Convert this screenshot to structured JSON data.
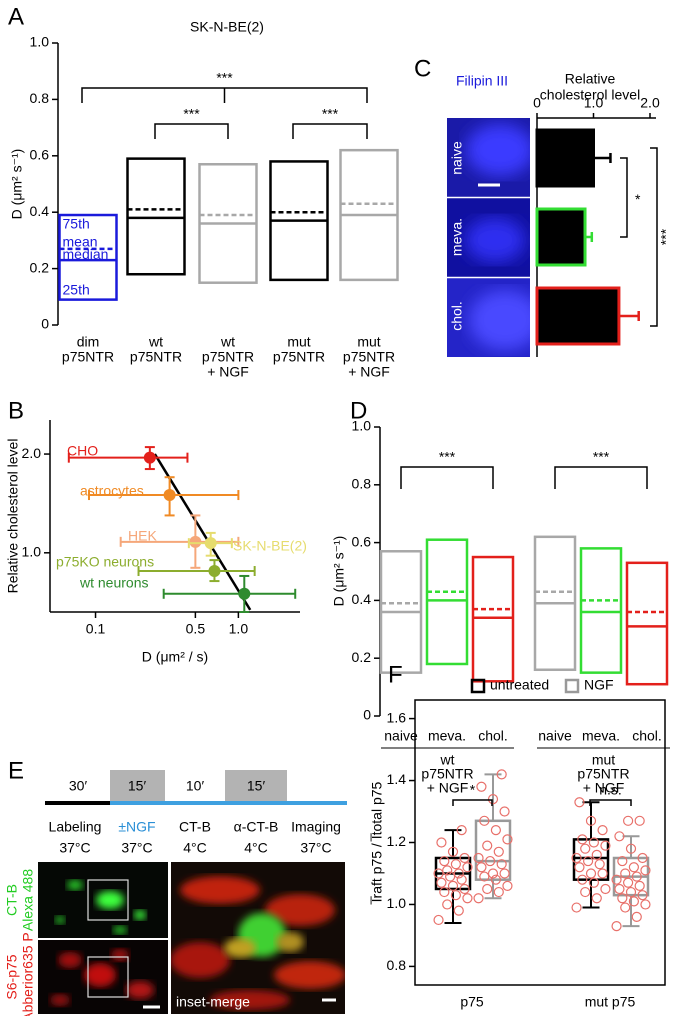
{
  "chart_data": [
    {
      "panel": "A",
      "type": "box",
      "title": "SK-N-BE(2)",
      "ylabel": "D (μm² s⁻¹)",
      "ylim": [
        0,
        1
      ],
      "yticks": [
        0,
        0.2,
        0.4,
        0.6,
        0.8,
        {
          "value": 1,
          "label": "1.0"
        }
      ],
      "categories": [
        [
          "dim",
          "p75NTR"
        ],
        [
          "wt",
          "p75NTR"
        ],
        [
          "wt",
          "p75NTR",
          "+ NGF"
        ],
        [
          "mut",
          "p75NTR"
        ],
        [
          "mut",
          "p75NTR",
          "+ NGF"
        ]
      ],
      "boxes": [
        {
          "color": "#1a1adb",
          "q1": 0.09,
          "q3": 0.39,
          "median": 0.23,
          "mean": 0.27
        },
        {
          "color": "#000000",
          "q1": 0.18,
          "q3": 0.59,
          "median": 0.38,
          "mean": 0.41
        },
        {
          "color": "#a8a8a8",
          "q1": 0.15,
          "q3": 0.57,
          "median": 0.36,
          "mean": 0.39
        },
        {
          "color": "#000000",
          "q1": 0.16,
          "q3": 0.58,
          "median": 0.37,
          "mean": 0.4
        },
        {
          "color": "#a8a8a8",
          "q1": 0.16,
          "q3": 0.62,
          "median": 0.39,
          "mean": 0.43
        }
      ],
      "box_labels": [
        "75th",
        "mean",
        "median",
        "25th"
      ],
      "annotations": [
        "***",
        "***",
        "***"
      ]
    },
    {
      "panel": "B",
      "type": "scatter",
      "xlabel": "D (μm² / s)",
      "ylabel": "Relative cholesterol level",
      "xlog": true,
      "ylog": true,
      "xlim": [
        0.048,
        2.7
      ],
      "ylim": [
        0.66,
        2.54
      ],
      "xticks": [
        0.1,
        0.5,
        {
          "value": 1,
          "label": "1.0"
        }
      ],
      "yticks": [
        {
          "value": 1,
          "label": "1.0"
        },
        {
          "value": 2,
          "label": "2.0"
        }
      ],
      "series": [
        {
          "name": "CHO",
          "color": "#e3201b",
          "x": 0.24,
          "y": 1.95,
          "x_low": 0.065,
          "x_high": 0.44,
          "y_low": 1.8,
          "y_high": 2.1
        },
        {
          "name": "astrocytes",
          "color": "#f08a24",
          "x": 0.33,
          "y": 1.5,
          "x_low": 0.09,
          "x_high": 1.0,
          "y_low": 1.3,
          "y_high": 1.7
        },
        {
          "name": "HEK",
          "color": "#f5a77a",
          "x": 0.5,
          "y": 1.08,
          "x_low": 0.15,
          "x_high": 1.0,
          "y_low": 0.9,
          "y_high": 1.3
        },
        {
          "name": "SK-N-BE(2)",
          "color": "#e6dc6e",
          "x": 0.64,
          "y": 1.07,
          "x_low": 0.45,
          "x_high": 0.9,
          "y_low": 0.98,
          "y_high": 1.15
        },
        {
          "name": "p75KO neurons",
          "color": "#8cad2e",
          "x": 0.68,
          "y": 0.88,
          "x_low": 0.2,
          "x_high": 1.3,
          "y_low": 0.82,
          "y_high": 0.95
        },
        {
          "name": "wt neurons",
          "color": "#2e8b2e",
          "x": 1.1,
          "y": 0.75,
          "x_low": 0.3,
          "x_high": 2.5,
          "y_low": 0.66,
          "y_high": 0.85
        }
      ],
      "fit": {
        "color": "#000000",
        "x": [
          0.26,
          1.21
        ],
        "y": [
          2.0,
          0.67
        ]
      }
    },
    {
      "panel": "C",
      "type": "hbar",
      "image_title": "Filipin III",
      "xlabel": [
        "Relative",
        "cholesterol level"
      ],
      "xlim": [
        0,
        2
      ],
      "xticks": [
        0,
        {
          "value": 1,
          "label": "1.0"
        },
        {
          "value": 2,
          "label": "2.0"
        }
      ],
      "categories": [
        "naive",
        "meva.",
        "chol."
      ],
      "values": [
        1.0,
        0.85,
        1.45
      ],
      "errors": [
        0.3,
        0.12,
        0.35
      ],
      "bar_color": "#000000",
      "colors": [
        "#000000",
        "#33dd33",
        "#e3201b"
      ],
      "annotations": [
        "*",
        "***"
      ]
    },
    {
      "panel": "D",
      "type": "box",
      "ylabel": "D (μm² s⁻¹)",
      "ylim": [
        0,
        1
      ],
      "yticks": [
        0,
        0.2,
        0.4,
        0.6,
        0.8,
        {
          "value": 1,
          "label": "1.0"
        }
      ],
      "categories": [
        "naive",
        "meva.",
        "chol.",
        "naive",
        "meva.",
        "chol."
      ],
      "groups": [
        [
          "wt",
          "p75NTR",
          "+ NGF"
        ],
        [
          "mut",
          "p75NTR",
          "+ NGF"
        ]
      ],
      "boxes": [
        {
          "color": "#a8a8a8",
          "q1": 0.15,
          "q3": 0.57,
          "median": 0.36,
          "mean": 0.39
        },
        {
          "color": "#33dd33",
          "q1": 0.18,
          "q3": 0.61,
          "median": 0.4,
          "mean": 0.43
        },
        {
          "color": "#e3201b",
          "q1": 0.12,
          "q3": 0.55,
          "median": 0.34,
          "mean": 0.37
        },
        {
          "color": "#a8a8a8",
          "q1": 0.16,
          "q3": 0.62,
          "median": 0.39,
          "mean": 0.43
        },
        {
          "color": "#33dd33",
          "q1": 0.15,
          "q3": 0.58,
          "median": 0.36,
          "mean": 0.4
        },
        {
          "color": "#e3201b",
          "q1": 0.11,
          "q3": 0.53,
          "median": 0.31,
          "mean": 0.36
        }
      ],
      "annotations": [
        "***",
        "***"
      ]
    },
    {
      "panel": "F",
      "type": "box",
      "ylabel": "I̅raft p75 / I̅total p75",
      "ylim": [
        0.74,
        1.66
      ],
      "yticks": [
        0.8,
        {
          "value": 1,
          "label": "1.0"
        },
        1.2,
        1.4,
        1.6
      ],
      "categories": [
        "p75",
        "mut p75"
      ],
      "point_color": "#e8706a",
      "series": [
        {
          "name": "untreated",
          "color": "#000000",
          "boxes": [
            {
              "whisker_low": 0.94,
              "q1": 1.05,
              "median": 1.1,
              "q3": 1.15,
              "whisker_high": 1.24,
              "points": [
                0.95,
                0.98,
                1.0,
                1.02,
                1.03,
                1.04,
                1.05,
                1.06,
                1.07,
                1.08,
                1.09,
                1.1,
                1.1,
                1.11,
                1.12,
                1.13,
                1.14,
                1.15,
                1.17,
                1.2,
                1.24
              ]
            },
            {
              "whisker_low": 0.99,
              "q1": 1.08,
              "median": 1.15,
              "q3": 1.21,
              "whisker_high": 1.33,
              "points": [
                0.99,
                1.02,
                1.04,
                1.05,
                1.07,
                1.08,
                1.1,
                1.1,
                1.12,
                1.13,
                1.14,
                1.15,
                1.16,
                1.18,
                1.19,
                1.2,
                1.21,
                1.24,
                1.27,
                1.33
              ]
            }
          ]
        },
        {
          "name": "NGF",
          "color": "#999999",
          "boxes": [
            {
              "whisker_low": 1.02,
              "q1": 1.08,
              "median": 1.14,
              "q3": 1.27,
              "whisker_high": 1.42,
              "points": [
                1.02,
                1.04,
                1.05,
                1.06,
                1.08,
                1.09,
                1.1,
                1.1,
                1.12,
                1.13,
                1.14,
                1.15,
                1.17,
                1.19,
                1.21,
                1.24,
                1.27,
                1.3,
                1.34,
                1.38,
                1.42
              ]
            },
            {
              "whisker_low": 0.93,
              "q1": 1.03,
              "median": 1.09,
              "q3": 1.15,
              "whisker_high": 1.22,
              "points": [
                0.93,
                0.96,
                0.99,
                1.0,
                1.01,
                1.02,
                1.03,
                1.04,
                1.05,
                1.06,
                1.07,
                1.08,
                1.09,
                1.1,
                1.11,
                1.12,
                1.14,
                1.15,
                1.18,
                1.22,
                1.27,
                1.27
              ]
            }
          ]
        }
      ],
      "annotations": [
        "*",
        "n.s."
      ]
    }
  ],
  "panel_e": {
    "panel": "E",
    "durations": [
      "30′",
      "15′",
      "10′",
      "15′"
    ],
    "steps": [
      {
        "label": "Labeling",
        "temp": "37°C"
      },
      {
        "label": "±NGF",
        "temp": "37°C"
      },
      {
        "label": "CT-B",
        "temp": "4°C"
      },
      {
        "label": "α-CT-B",
        "temp": "4°C"
      },
      {
        "label": "Imaging",
        "temp": "37°C"
      }
    ],
    "channels": [
      [
        "CT-B",
        "Alexa 488"
      ],
      [
        "S6-p75",
        "Abberior635 P"
      ]
    ],
    "inset_label": "inset-merge"
  }
}
